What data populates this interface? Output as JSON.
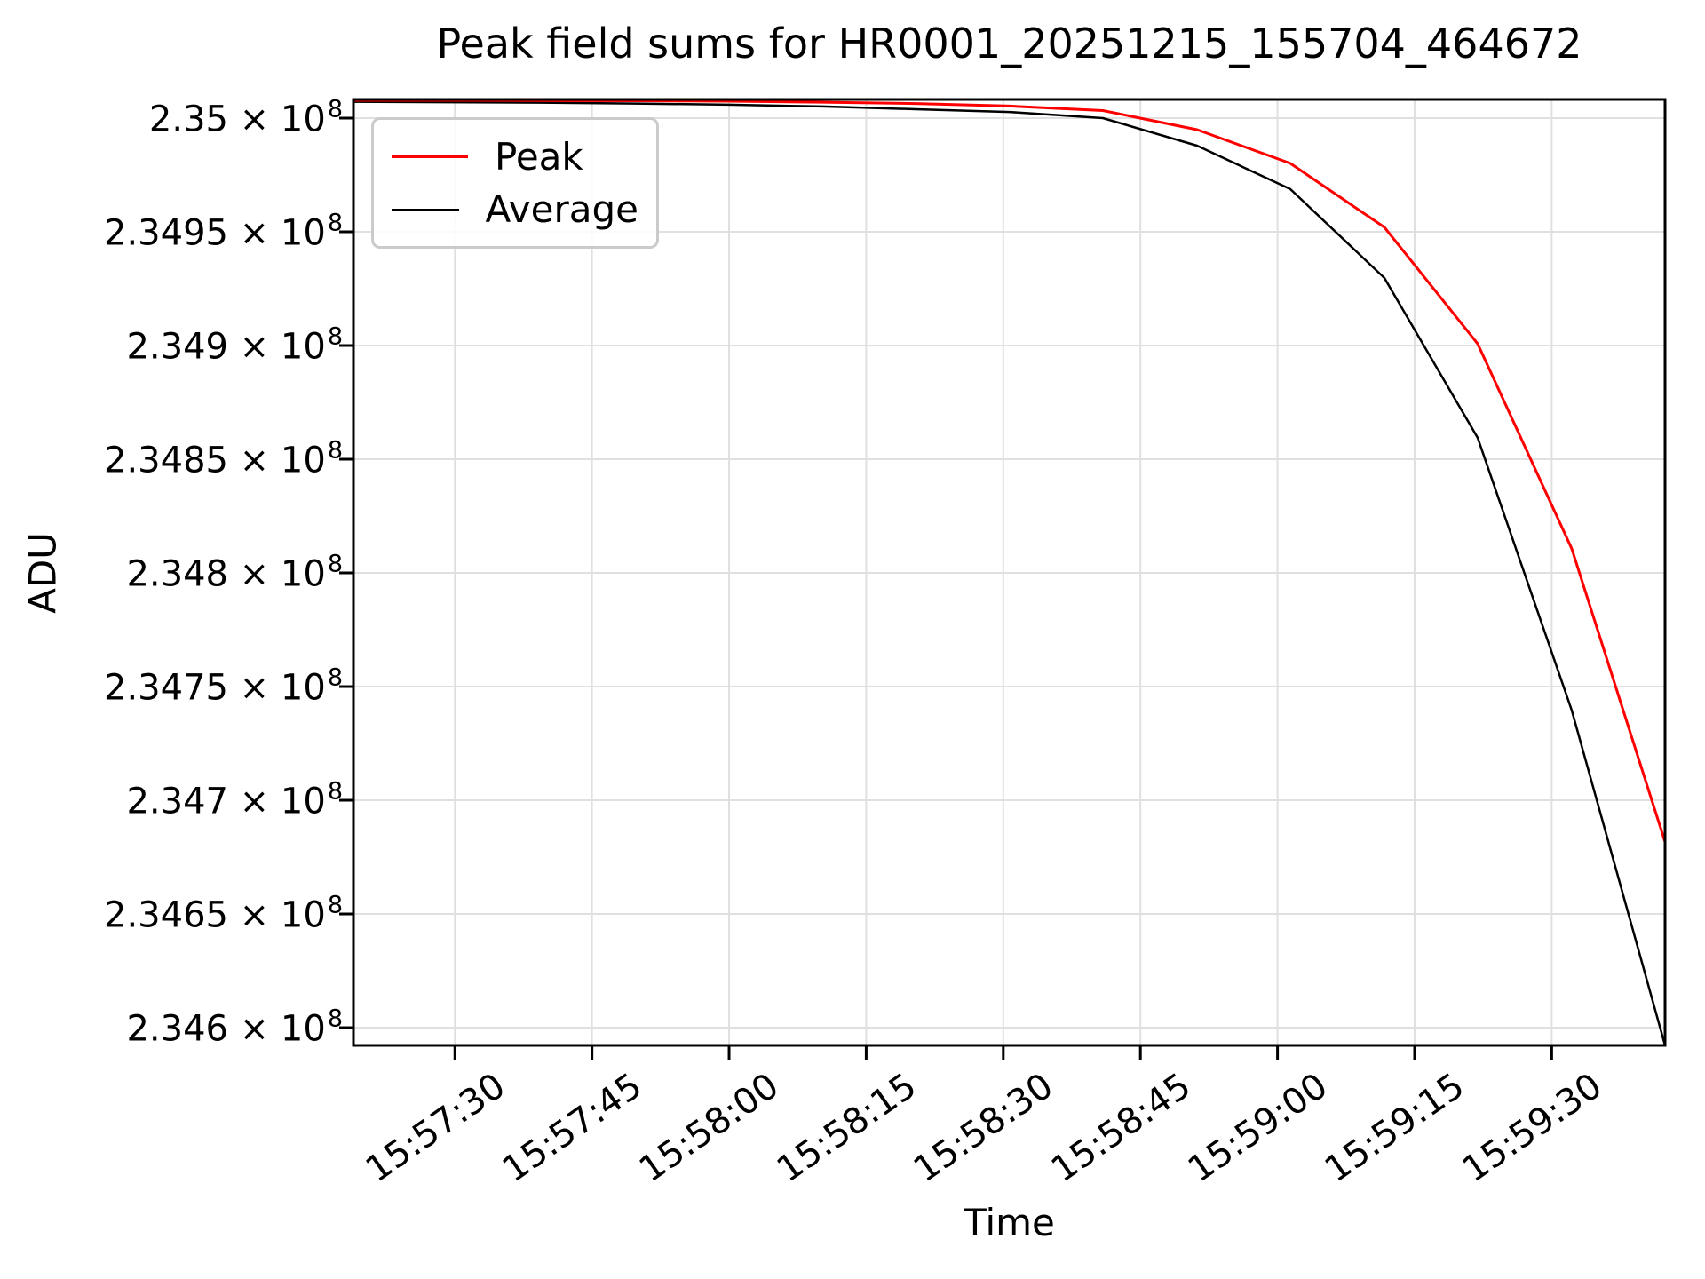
{
  "chart_data": {
    "type": "line",
    "title": "Peak field sums for HR0001_20251215_155704_464672",
    "xlabel": "Time",
    "ylabel": "ADU",
    "grid": true,
    "grid_color": "#e0e0e0",
    "legend_position": "upper left",
    "legend_border_color": "#cbcbcb",
    "x_tick_labels": [
      "15:57:30",
      "15:57:45",
      "15:58:00",
      "15:58:15",
      "15:58:30",
      "15:58:45",
      "15:59:00",
      "15:59:15",
      "15:59:30"
    ],
    "x_tick_seconds": [
      0,
      15,
      30,
      45,
      60,
      75,
      90,
      105,
      120
    ],
    "xlim_seconds": [
      -11.1,
      132.4
    ],
    "y_tick_mantissas": [
      "2.35",
      "2.3495",
      "2.349",
      "2.3485",
      "2.348",
      "2.3475",
      "2.347",
      "2.3465",
      "2.346"
    ],
    "y_tick_exponent": "8",
    "y_tick_times_base": " × 10",
    "y_tick_values": [
      235000000,
      234950000,
      234900000,
      234850000,
      234800000,
      234750000,
      234700000,
      234650000,
      234600000
    ],
    "ylim": [
      234592200,
      235008200
    ],
    "x_seconds": [
      -11.1,
      -0.8,
      9.4,
      19.7,
      29.9,
      40.2,
      50.4,
      60.7,
      70.9,
      81.2,
      91.4,
      101.7,
      111.9,
      122.2,
      132.4
    ],
    "series": [
      {
        "name": "Peak",
        "color": "#ff0000",
        "line_width": 3,
        "values": [
          235007800,
          235007800,
          235007700,
          235007600,
          235007400,
          235007000,
          235006400,
          235005300,
          235003300,
          234994900,
          234980100,
          234952000,
          234900800,
          234810600,
          234681700
        ]
      },
      {
        "name": "Average",
        "color": "#000000",
        "line_width": 2.5,
        "values": [
          235007200,
          235007000,
          235006800,
          235006400,
          235005900,
          235005100,
          235003900,
          235002700,
          235000000,
          234987900,
          234968800,
          234929700,
          234859400,
          234739500,
          234592200
        ]
      }
    ]
  }
}
